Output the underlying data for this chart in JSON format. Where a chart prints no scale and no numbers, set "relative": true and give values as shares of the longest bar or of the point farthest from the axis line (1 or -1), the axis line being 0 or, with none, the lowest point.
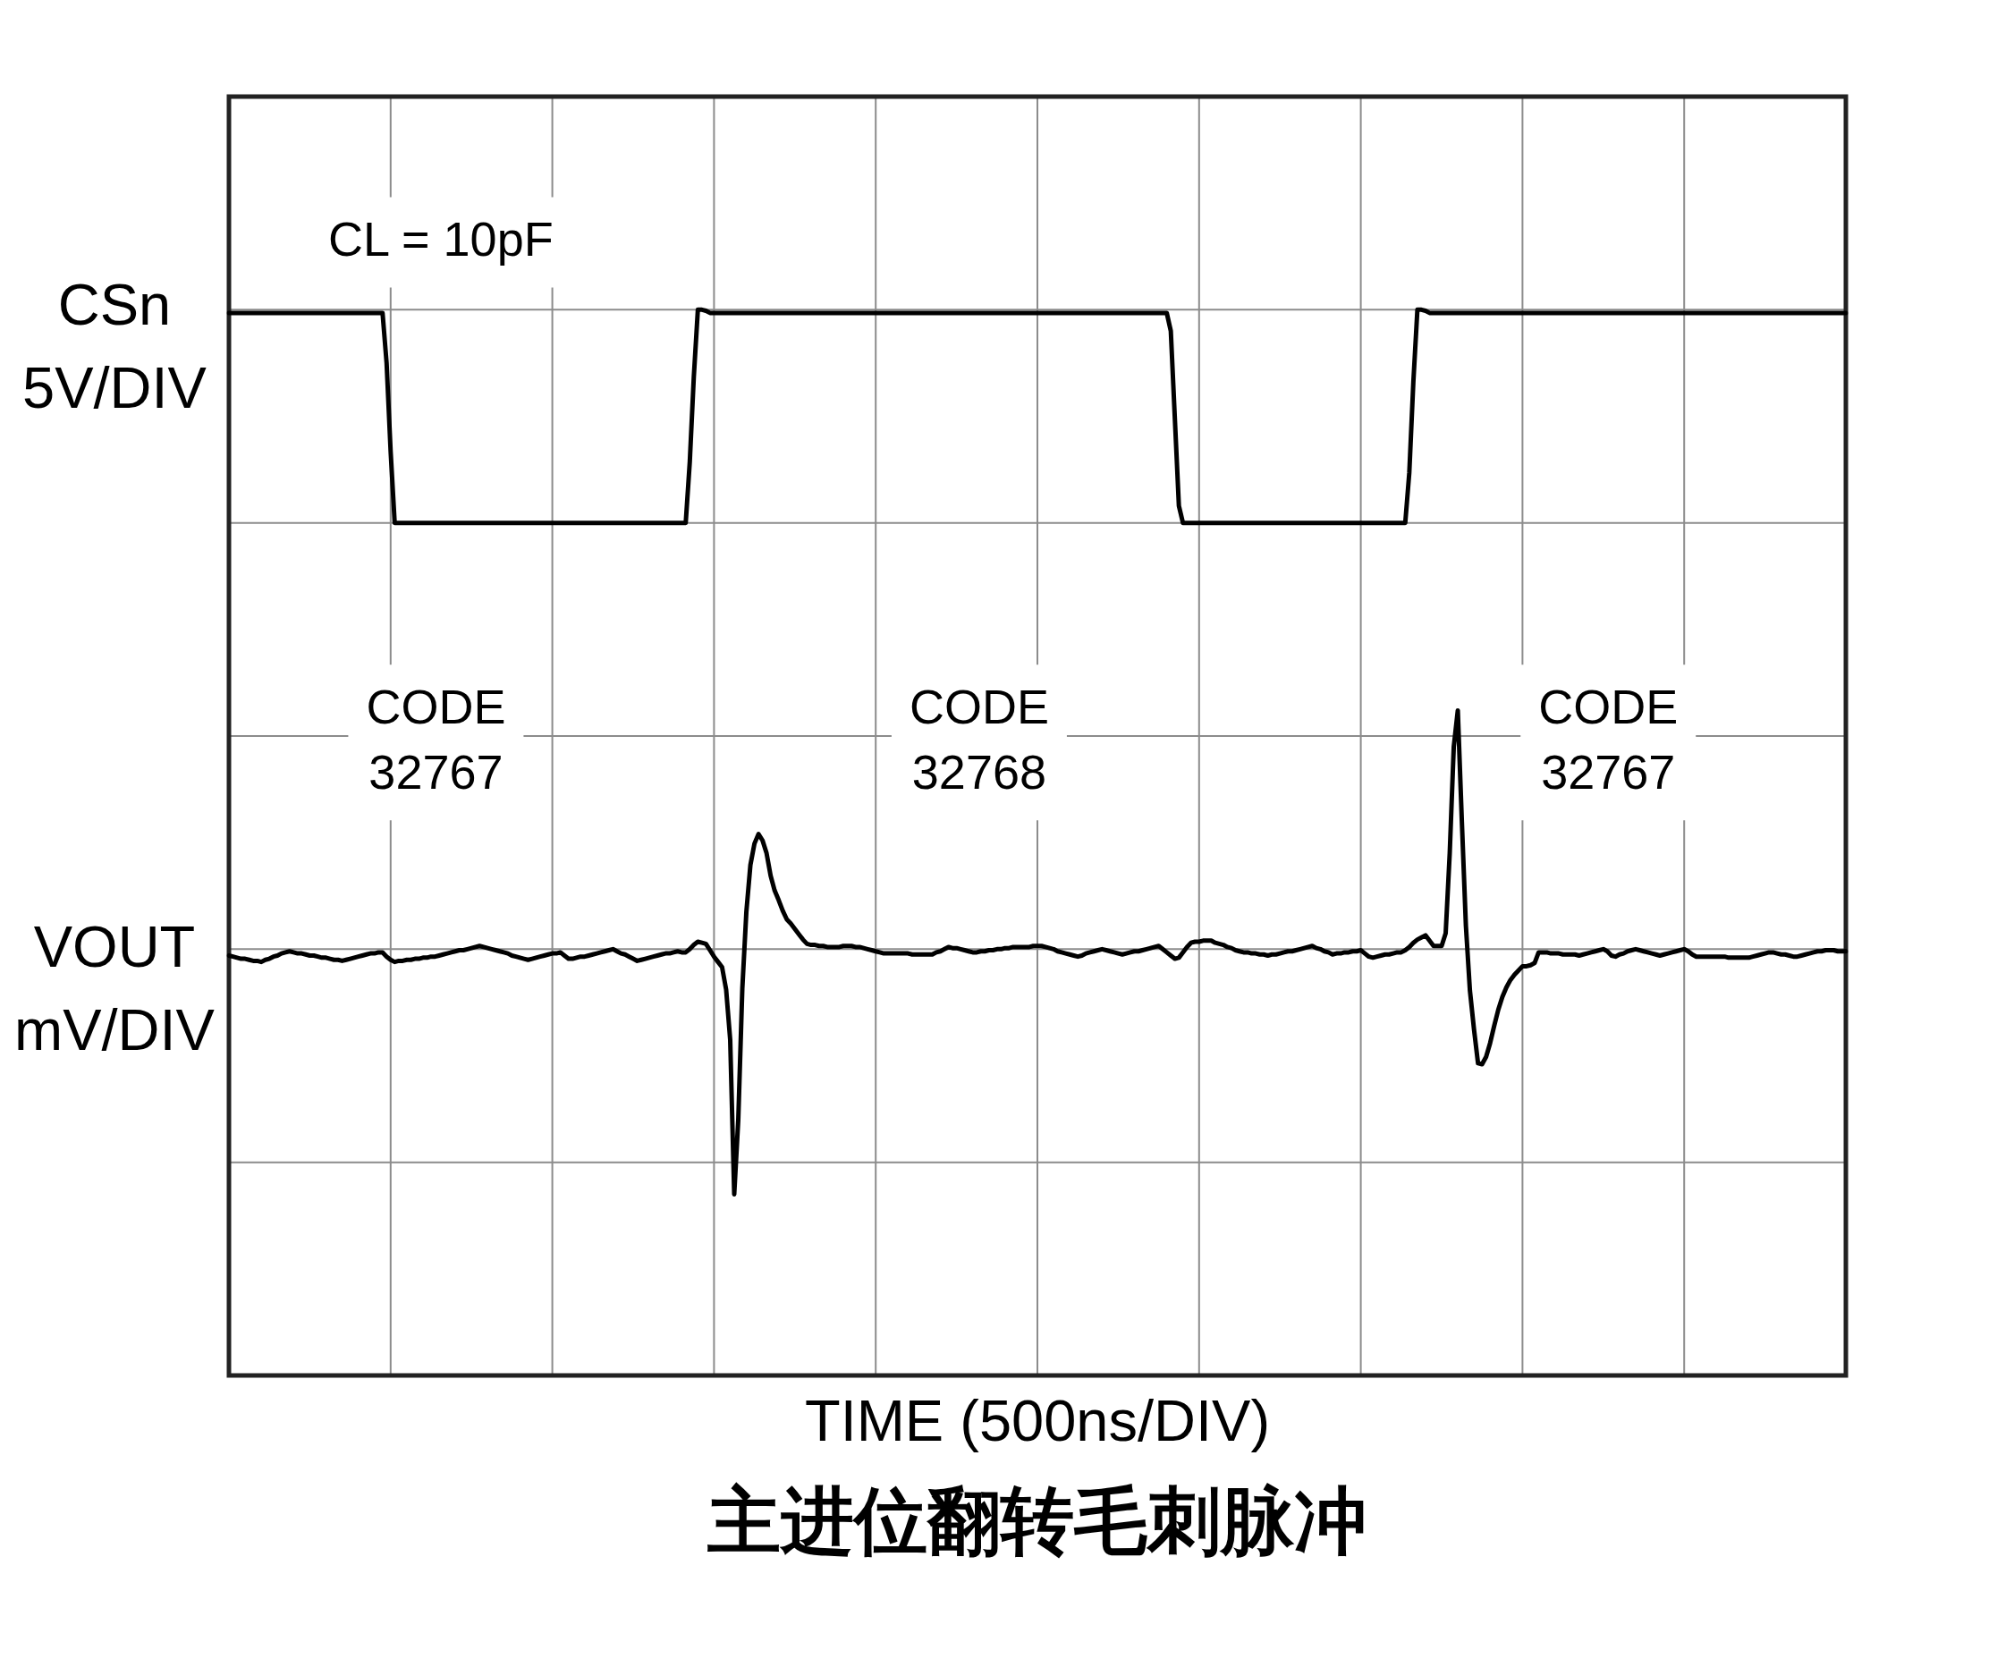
{
  "chart_data": {
    "type": "line",
    "relative": true,
    "title": "主进位翻转毛刺脉冲",
    "xlabel": "TIME (500ns/DIV)",
    "grid": true,
    "tick_labels": false,
    "line_style": "solid",
    "annotations": [
      "CL = 10pF",
      "CODE 32767",
      "CODE 32768",
      "CODE 32767"
    ],
    "categories": [
      null,
      null,
      null,
      null,
      null,
      null,
      null,
      null,
      null,
      null,
      null,
      null,
      null,
      null,
      null,
      null,
      null,
      null,
      null,
      null,
      null,
      null,
      null,
      null,
      null,
      null,
      null,
      null,
      null,
      null,
      null,
      null,
      null,
      null,
      null,
      null,
      null,
      null,
      null,
      null,
      null,
      null,
      null,
      null,
      null,
      null,
      null,
      null,
      null,
      null,
      null,
      null,
      null,
      null,
      null,
      null,
      null,
      null,
      null,
      null,
      null,
      null,
      null,
      null,
      null,
      null,
      null,
      null,
      null,
      null,
      null,
      null,
      null,
      null,
      null,
      null,
      null,
      null,
      null,
      null,
      null,
      null,
      null,
      null,
      null,
      null,
      null,
      null,
      null,
      null,
      null,
      null,
      null,
      null,
      null,
      null,
      null,
      null,
      null,
      null,
      null,
      null,
      null,
      null,
      null,
      null,
      null,
      null,
      null,
      null,
      null,
      null,
      null,
      null,
      null,
      null,
      null,
      null,
      null,
      null,
      null,
      null,
      null,
      null,
      null,
      null,
      null,
      null,
      null,
      null,
      null,
      null,
      null,
      null,
      null,
      null,
      null,
      null,
      null,
      null,
      null,
      null,
      null,
      null,
      null,
      null,
      null,
      null,
      null,
      null,
      null,
      null,
      null,
      null,
      null,
      null,
      null,
      null,
      null,
      null,
      null,
      null,
      null,
      null,
      null,
      null,
      null,
      null,
      null,
      null,
      null,
      null,
      null,
      null,
      null,
      null,
      null,
      null,
      null,
      null,
      null,
      null,
      null,
      null,
      null,
      null,
      null,
      null,
      null,
      null,
      null,
      null,
      null,
      null,
      null,
      null,
      null,
      null,
      null,
      null,
      null,
      null,
      null,
      null,
      null,
      null,
      null,
      null,
      null,
      null,
      null,
      null,
      null,
      null,
      null,
      null,
      null,
      null,
      null,
      null,
      null,
      null,
      null,
      null,
      null,
      null,
      null,
      null,
      null,
      null,
      null,
      null,
      null,
      null,
      null,
      null,
      null,
      null,
      null,
      null,
      null,
      null,
      null,
      null,
      null,
      null,
      null,
      null,
      null,
      null,
      null,
      null,
      null,
      null,
      null,
      null,
      null,
      null,
      null,
      null,
      null,
      null,
      null,
      null,
      null,
      null,
      null,
      null,
      null,
      null,
      null,
      null,
      null,
      null,
      null,
      null,
      null,
      null,
      null,
      null,
      null,
      null,
      null,
      null,
      null,
      null,
      null,
      null,
      null,
      null,
      null,
      null,
      null,
      null,
      null,
      null,
      null,
      null,
      null,
      null,
      null,
      null,
      null,
      null,
      null,
      null,
      null,
      null,
      null,
      null,
      null,
      null,
      null,
      null,
      null,
      null,
      null,
      null,
      null,
      null,
      null,
      null,
      null,
      null,
      null,
      null,
      null,
      null,
      null,
      null,
      null,
      null,
      null,
      null,
      null,
      null,
      null,
      null,
      null,
      null,
      null,
      null,
      null,
      null,
      null,
      null,
      null,
      null,
      null,
      null,
      null,
      null,
      null,
      null,
      null,
      null,
      null,
      null,
      null,
      null,
      null,
      null,
      null,
      null,
      null,
      null,
      null,
      null,
      null,
      null,
      null,
      null,
      null,
      null,
      null,
      null,
      null,
      null,
      null,
      null,
      null,
      null,
      null,
      null,
      null,
      null,
      null,
      null,
      null,
      null,
      null,
      null,
      null,
      null,
      null,
      null,
      null,
      null,
      null,
      null,
      null
    ],
    "series": [
      {
        "name": "CSn 5V/DIV",
        "color": "#000000",
        "values": [
          0.997,
          0.997,
          0.997,
          0.997,
          0.997,
          0.997,
          0.997,
          0.997,
          0.997,
          0.997,
          0.997,
          0.997,
          0.997,
          0.997,
          0.997,
          0.997,
          0.997,
          0.997,
          0.997,
          0.997,
          0.997,
          0.997,
          0.997,
          0.997,
          0.997,
          0.997,
          0.997,
          0.997,
          0.997,
          0.997,
          0.997,
          0.997,
          0.997,
          0.997,
          0.997,
          0.997,
          0.997,
          0.997,
          0.997,
          0.95,
          0.867,
          0.8,
          0.8,
          0.8,
          0.8,
          0.8,
          0.8,
          0.8,
          0.8,
          0.8,
          0.8,
          0.8,
          0.8,
          0.8,
          0.8,
          0.8,
          0.8,
          0.8,
          0.8,
          0.8,
          0.8,
          0.8,
          0.8,
          0.8,
          0.8,
          0.8,
          0.8,
          0.8,
          0.8,
          0.8,
          0.8,
          0.8,
          0.8,
          0.8,
          0.8,
          0.8,
          0.8,
          0.8,
          0.8,
          0.8,
          0.8,
          0.8,
          0.8,
          0.8,
          0.8,
          0.8,
          0.8,
          0.8,
          0.8,
          0.8,
          0.8,
          0.8,
          0.8,
          0.8,
          0.8,
          0.8,
          0.8,
          0.8,
          0.8,
          0.8,
          0.8,
          0.8,
          0.8,
          0.8,
          0.8,
          0.8,
          0.8,
          0.8,
          0.8,
          0.8,
          0.8,
          0.8,
          0.8,
          0.8,
          0.857,
          0.937,
          1.0,
          1.0,
          0.999,
          0.997,
          0.997,
          0.997,
          0.997,
          0.997,
          0.997,
          0.997,
          0.997,
          0.997,
          0.997,
          0.997,
          0.997,
          0.997,
          0.997,
          0.997,
          0.997,
          0.997,
          0.997,
          0.997,
          0.997,
          0.997,
          0.997,
          0.997,
          0.997,
          0.997,
          0.997,
          0.997,
          0.997,
          0.997,
          0.997,
          0.997,
          0.997,
          0.997,
          0.997,
          0.997,
          0.997,
          0.997,
          0.997,
          0.997,
          0.997,
          0.997,
          0.997,
          0.997,
          0.997,
          0.997,
          0.997,
          0.997,
          0.997,
          0.997,
          0.997,
          0.997,
          0.997,
          0.997,
          0.997,
          0.997,
          0.997,
          0.997,
          0.997,
          0.997,
          0.997,
          0.997,
          0.997,
          0.997,
          0.997,
          0.997,
          0.997,
          0.997,
          0.997,
          0.997,
          0.997,
          0.997,
          0.997,
          0.997,
          0.997,
          0.997,
          0.997,
          0.997,
          0.997,
          0.997,
          0.997,
          0.997,
          0.997,
          0.997,
          0.997,
          0.997,
          0.997,
          0.997,
          0.997,
          0.997,
          0.997,
          0.997,
          0.997,
          0.997,
          0.997,
          0.997,
          0.997,
          0.997,
          0.997,
          0.997,
          0.997,
          0.997,
          0.997,
          0.997,
          0.997,
          0.997,
          0.997,
          0.997,
          0.997,
          0.997,
          0.997,
          0.997,
          0.997,
          0.997,
          0.997,
          0.98,
          0.898,
          0.816,
          0.8,
          0.8,
          0.8,
          0.8,
          0.8,
          0.8,
          0.8,
          0.8,
          0.8,
          0.8,
          0.8,
          0.8,
          0.8,
          0.8,
          0.8,
          0.8,
          0.8,
          0.8,
          0.8,
          0.8,
          0.8,
          0.8,
          0.8,
          0.8,
          0.8,
          0.8,
          0.8,
          0.8,
          0.8,
          0.8,
          0.8,
          0.8,
          0.8,
          0.8,
          0.8,
          0.8,
          0.8,
          0.8,
          0.8,
          0.8,
          0.8,
          0.8,
          0.8,
          0.8,
          0.8,
          0.8,
          0.8,
          0.8,
          0.8,
          0.8,
          0.8,
          0.8,
          0.8,
          0.8,
          0.8,
          0.8,
          0.847,
          0.932,
          1.0,
          1.0,
          0.999,
          0.997,
          0.997,
          0.997,
          0.997,
          0.997,
          0.997,
          0.997,
          0.997,
          0.997,
          0.997,
          0.997,
          0.997,
          0.997,
          0.997,
          0.997,
          0.997,
          0.997,
          0.997,
          0.997,
          0.997,
          0.997,
          0.997,
          0.997,
          0.997,
          0.997,
          0.997,
          0.997,
          0.997,
          0.997,
          0.997,
          0.997,
          0.997,
          0.997,
          0.997,
          0.997,
          0.997,
          0.997,
          0.997,
          0.997,
          0.997,
          0.997,
          0.997,
          0.997,
          0.997,
          0.997,
          0.997,
          0.997,
          0.997,
          0.997,
          0.997,
          0.997,
          0.997,
          0.997,
          0.997,
          0.997,
          0.997,
          0.997,
          0.997,
          0.997,
          0.997,
          0.997,
          0.997,
          0.997,
          0.997,
          0.997,
          0.997,
          0.997,
          0.997,
          0.997,
          0.997,
          0.997,
          0.997,
          0.997,
          0.997,
          0.997,
          0.997,
          0.997,
          0.997,
          0.997,
          0.997,
          0.997,
          0.997,
          0.997,
          0.997,
          0.997,
          0.997,
          0.997,
          0.997,
          0.997,
          0.997,
          0.997,
          0.997,
          0.997,
          0.997,
          0.997,
          0.997,
          0.997,
          0.997,
          0.997,
          0.997,
          0.997,
          0.997,
          0.997,
          0.997
        ]
      },
      {
        "name": "VOUT mV/DIV",
        "color": "#000000",
        "values": [
          0.394,
          0.393,
          0.392,
          0.391,
          0.391,
          0.39,
          0.389,
          0.389,
          0.388,
          0.39,
          0.391,
          0.393,
          0.394,
          0.396,
          0.397,
          0.398,
          0.397,
          0.396,
          0.396,
          0.395,
          0.394,
          0.394,
          0.393,
          0.392,
          0.392,
          0.391,
          0.39,
          0.39,
          0.389,
          0.39,
          0.391,
          0.392,
          0.393,
          0.394,
          0.395,
          0.396,
          0.396,
          0.397,
          0.397,
          0.393,
          0.39,
          0.388,
          0.389,
          0.389,
          0.39,
          0.39,
          0.391,
          0.391,
          0.392,
          0.392,
          0.393,
          0.393,
          0.394,
          0.395,
          0.396,
          0.397,
          0.398,
          0.399,
          0.399,
          0.4,
          0.401,
          0.402,
          0.403,
          0.402,
          0.401,
          0.4,
          0.399,
          0.398,
          0.397,
          0.396,
          0.394,
          0.393,
          0.392,
          0.391,
          0.39,
          0.391,
          0.392,
          0.393,
          0.394,
          0.395,
          0.396,
          0.396,
          0.397,
          0.394,
          0.391,
          0.391,
          0.392,
          0.393,
          0.393,
          0.394,
          0.395,
          0.396,
          0.397,
          0.398,
          0.399,
          0.4,
          0.398,
          0.396,
          0.395,
          0.393,
          0.391,
          0.389,
          0.39,
          0.391,
          0.392,
          0.393,
          0.394,
          0.395,
          0.396,
          0.396,
          0.397,
          0.398,
          0.397,
          0.397,
          0.4,
          0.404,
          0.407,
          0.406,
          0.405,
          0.399,
          0.393,
          0.388,
          0.383,
          0.362,
          0.315,
          0.17,
          0.24,
          0.363,
          0.435,
          0.479,
          0.499,
          0.508,
          0.502,
          0.49,
          0.469,
          0.455,
          0.446,
          0.436,
          0.428,
          0.424,
          0.419,
          0.414,
          0.409,
          0.405,
          0.404,
          0.404,
          0.403,
          0.403,
          0.402,
          0.402,
          0.402,
          0.402,
          0.403,
          0.403,
          0.403,
          0.402,
          0.402,
          0.401,
          0.4,
          0.399,
          0.398,
          0.397,
          0.396,
          0.396,
          0.396,
          0.396,
          0.396,
          0.396,
          0.396,
          0.395,
          0.395,
          0.395,
          0.395,
          0.395,
          0.395,
          0.397,
          0.398,
          0.4,
          0.402,
          0.401,
          0.401,
          0.4,
          0.399,
          0.398,
          0.397,
          0.397,
          0.398,
          0.398,
          0.399,
          0.399,
          0.4,
          0.4,
          0.401,
          0.401,
          0.402,
          0.402,
          0.402,
          0.402,
          0.402,
          0.403,
          0.403,
          0.403,
          0.402,
          0.401,
          0.4,
          0.398,
          0.397,
          0.396,
          0.395,
          0.394,
          0.393,
          0.394,
          0.396,
          0.397,
          0.398,
          0.399,
          0.4,
          0.399,
          0.398,
          0.397,
          0.396,
          0.395,
          0.396,
          0.397,
          0.398,
          0.398,
          0.399,
          0.4,
          0.401,
          0.402,
          0.403,
          0.4,
          0.397,
          0.394,
          0.391,
          0.392,
          0.397,
          0.402,
          0.406,
          0.407,
          0.407,
          0.408,
          0.408,
          0.408,
          0.406,
          0.405,
          0.404,
          0.402,
          0.401,
          0.399,
          0.398,
          0.397,
          0.397,
          0.396,
          0.396,
          0.395,
          0.395,
          0.394,
          0.395,
          0.395,
          0.396,
          0.397,
          0.398,
          0.398,
          0.399,
          0.4,
          0.401,
          0.402,
          0.403,
          0.401,
          0.4,
          0.398,
          0.397,
          0.395,
          0.396,
          0.396,
          0.397,
          0.397,
          0.398,
          0.398,
          0.399,
          0.396,
          0.393,
          0.392,
          0.393,
          0.394,
          0.395,
          0.395,
          0.396,
          0.397,
          0.397,
          0.399,
          0.402,
          0.406,
          0.409,
          0.411,
          0.413,
          0.408,
          0.403,
          0.403,
          0.403,
          0.415,
          0.49,
          0.59,
          0.624,
          0.52,
          0.422,
          0.361,
          0.325,
          0.293,
          0.292,
          0.299,
          0.312,
          0.328,
          0.343,
          0.355,
          0.364,
          0.371,
          0.376,
          0.38,
          0.384,
          0.384,
          0.385,
          0.387,
          0.397,
          0.397,
          0.397,
          0.396,
          0.396,
          0.396,
          0.395,
          0.395,
          0.395,
          0.395,
          0.394,
          0.395,
          0.396,
          0.397,
          0.398,
          0.399,
          0.4,
          0.398,
          0.394,
          0.393,
          0.395,
          0.396,
          0.398,
          0.399,
          0.4,
          0.399,
          0.398,
          0.397,
          0.396,
          0.395,
          0.394,
          0.395,
          0.396,
          0.397,
          0.398,
          0.399,
          0.4,
          0.398,
          0.395,
          0.393,
          0.393,
          0.393,
          0.393,
          0.393,
          0.393,
          0.393,
          0.393,
          0.392,
          0.392,
          0.392,
          0.392,
          0.392,
          0.392,
          0.393,
          0.394,
          0.395,
          0.396,
          0.397,
          0.397,
          0.396,
          0.395,
          0.395,
          0.394,
          0.393,
          0.393,
          0.394,
          0.395,
          0.396,
          0.397,
          0.398,
          0.398,
          0.399,
          0.399,
          0.399,
          0.398,
          0.398,
          0.398
        ]
      }
    ]
  }
}
